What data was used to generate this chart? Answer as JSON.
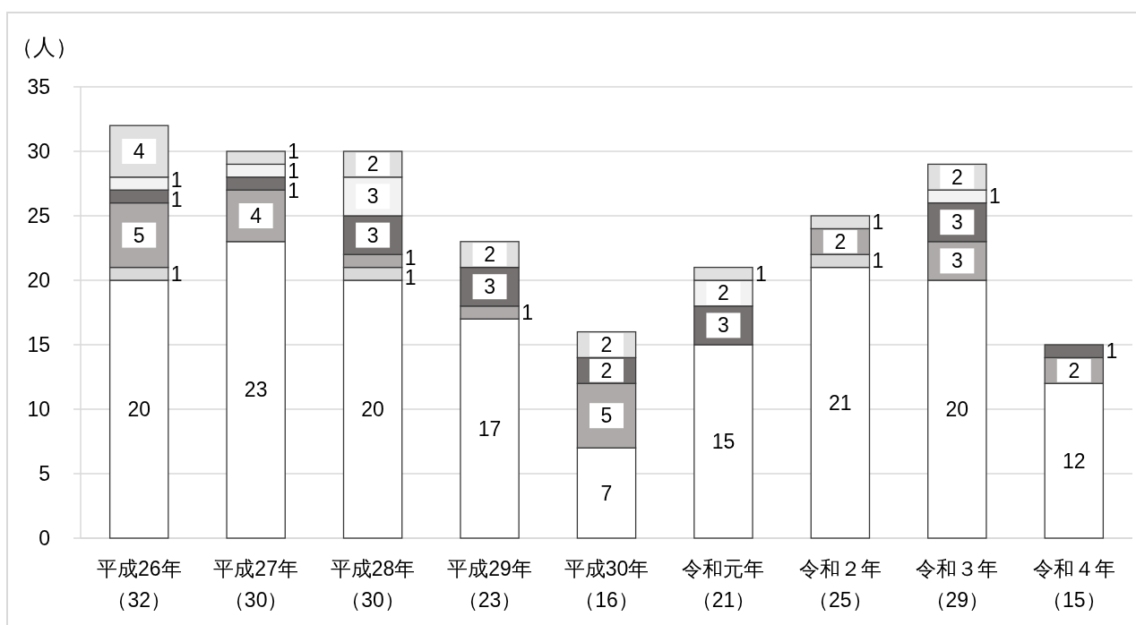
{
  "chart_data": {
    "type": "bar",
    "stacked": true,
    "ylabel": "（人）",
    "categories": [
      "平成26年（32）",
      "平成27年（30）",
      "平成28年（30）",
      "平成29年（23）",
      "平成30年（16）",
      "令和元年（21）",
      "令和２年（25）",
      "令和３年（29）",
      "令和４年（15）"
    ],
    "ylim": [
      0,
      35
    ],
    "yticks": [
      0,
      5,
      10,
      15,
      20,
      25,
      30,
      35
    ],
    "grid": "y",
    "series": [
      {
        "color": "#ffffff",
        "values": [
          20,
          23,
          20,
          17,
          7,
          15,
          21,
          20,
          12
        ],
        "value_labels": [
          "20",
          "23",
          "20",
          "17",
          "7",
          "15",
          "21",
          "20",
          "12"
        ]
      },
      {
        "color": "#d9d9d9",
        "values": [
          1,
          0,
          1,
          0,
          0,
          0,
          1,
          0,
          0
        ],
        "value_labels": [
          "1",
          null,
          "1",
          null,
          null,
          null,
          "1",
          null,
          null
        ]
      },
      {
        "color": "#aeaaaa",
        "values": [
          5,
          4,
          1,
          1,
          5,
          0,
          2,
          3,
          2
        ],
        "value_labels": [
          "5",
          "4",
          "1",
          "1",
          "5",
          null,
          "2",
          "3",
          "2"
        ]
      },
      {
        "color": "#767171",
        "values": [
          1,
          1,
          3,
          3,
          2,
          3,
          0,
          3,
          1
        ],
        "value_labels": [
          "1",
          "1",
          "3",
          "3",
          "2",
          "3",
          null,
          "3",
          "1"
        ]
      },
      {
        "color": "#f2f2f2",
        "values": [
          1,
          1,
          3,
          0,
          0,
          2,
          0,
          1,
          0
        ],
        "value_labels": [
          "1",
          "1",
          "3",
          null,
          null,
          "2",
          null,
          "1",
          null
        ]
      },
      {
        "color": "#e0e0e0",
        "values": [
          4,
          1,
          2,
          2,
          2,
          1,
          1,
          2,
          0
        ],
        "value_labels": [
          "4",
          "1",
          "2",
          "2",
          "2",
          "1",
          "1",
          "2",
          null
        ]
      }
    ]
  }
}
